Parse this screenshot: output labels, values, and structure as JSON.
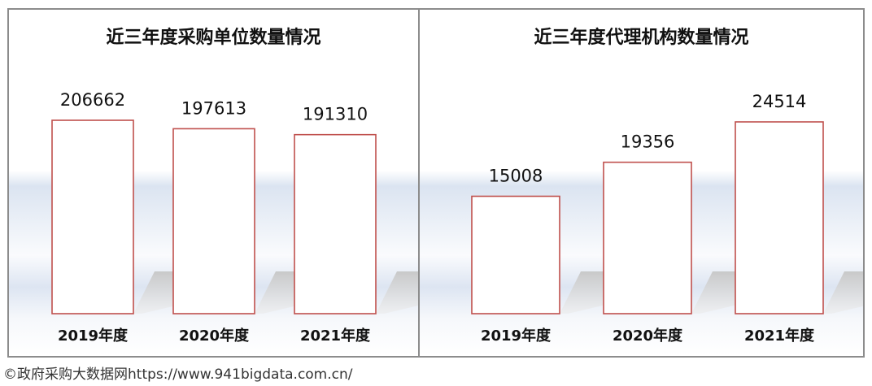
{
  "chart_data": [
    {
      "type": "bar",
      "title": "近三年度采购单位数量情况",
      "categories": [
        "2019年度",
        "2020年度",
        "2021年度"
      ],
      "values": [
        206662,
        197613,
        191310
      ],
      "value_labels": [
        "206662",
        "197613",
        "191310"
      ],
      "bar_fill": "#ffffff",
      "bar_stroke": "#c0504d",
      "grid": false,
      "legend": "none"
    },
    {
      "type": "bar",
      "title": "近三年度代理机构数量情况",
      "categories": [
        "2019年度",
        "2020年度",
        "2021年度"
      ],
      "values": [
        15008,
        19356,
        24514
      ],
      "value_labels": [
        "15008",
        "19356",
        "24514"
      ],
      "bar_fill": "#ffffff",
      "bar_stroke": "#c0504d",
      "grid": false,
      "legend": "none"
    }
  ],
  "footer": {
    "watermark": "©政府采购大数据网https://www.941bigdata.com.cn/"
  }
}
